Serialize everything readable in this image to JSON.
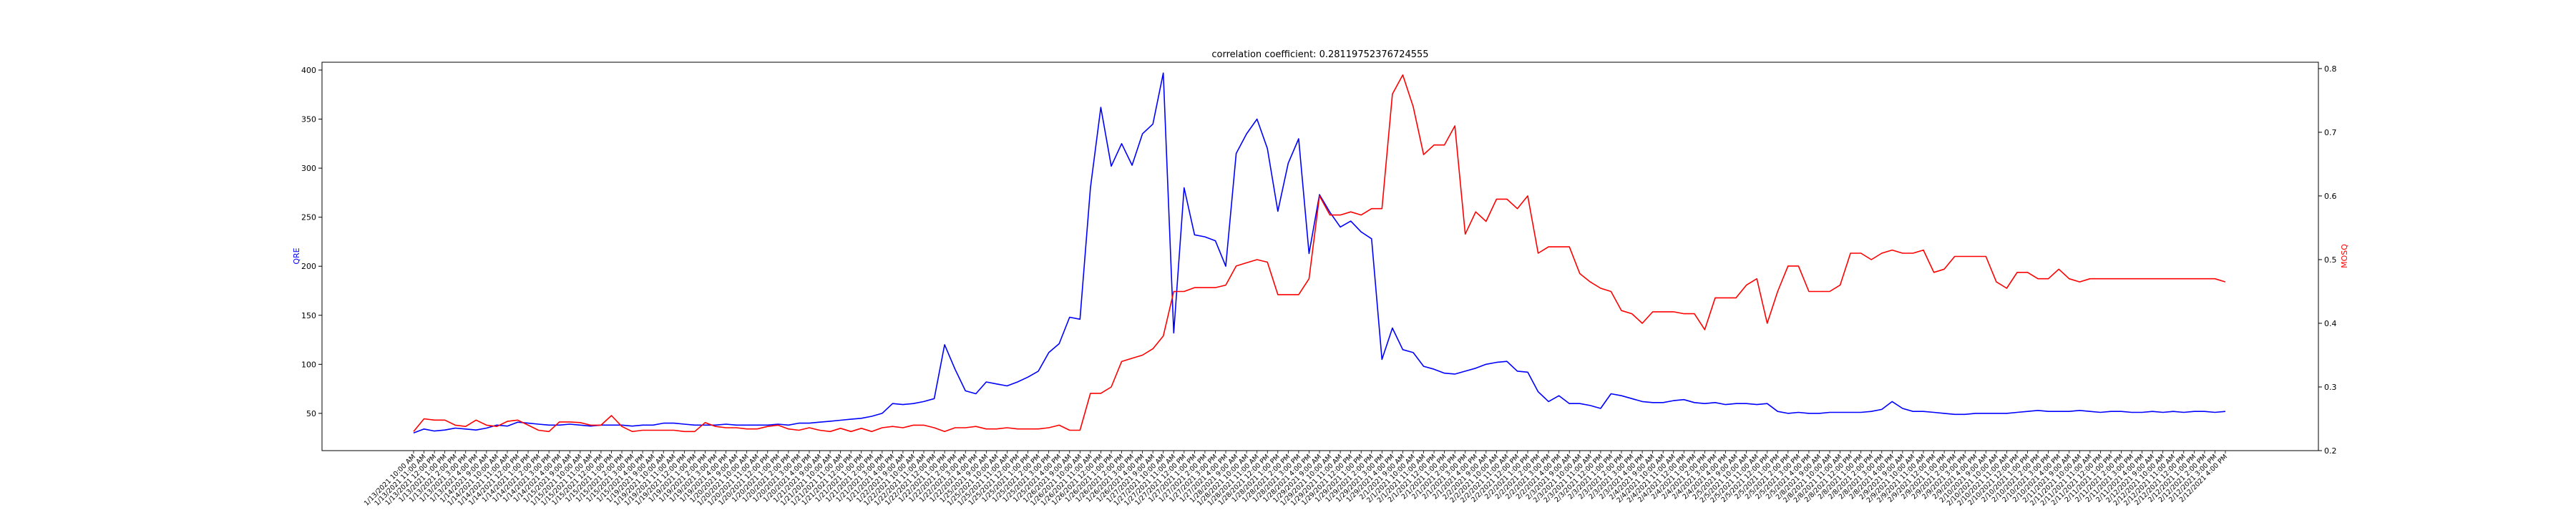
{
  "chart_data": {
    "type": "line",
    "title": "correlation coefficient: 0.28119752376724555",
    "xlabel": "",
    "ylabel_left": "QRE",
    "ylabel_right": "MOSQ",
    "colors": {
      "left": "#0000ff",
      "right": "#ff0000"
    },
    "ylim_left": [
      12,
      408
    ],
    "yticks_left": [
      50,
      100,
      150,
      200,
      250,
      300,
      350,
      400
    ],
    "ylim_right": [
      0.2,
      0.81
    ],
    "yticks_right": [
      0.2,
      0.3,
      0.4,
      0.5,
      0.6,
      0.7,
      0.8
    ],
    "x": [
      "1/13/2021 10:00 AM",
      "1/13/2021 11:00 AM",
      "1/13/2021 12:00 PM",
      "1/13/2021 1:00 PM",
      "1/13/2021 2:00 PM",
      "1/13/2021 3:00 PM",
      "1/13/2021 4:00 PM",
      "1/14/2021 9:00 AM",
      "1/14/2021 10:00 AM",
      "1/14/2021 11:00 AM",
      "1/14/2021 12:00 PM",
      "1/14/2021 1:00 PM",
      "1/14/2021 2:00 PM",
      "1/14/2021 3:00 PM",
      "1/14/2021 4:00 PM",
      "1/15/2021 9:00 AM",
      "1/15/2021 10:00 AM",
      "1/15/2021 11:00 AM",
      "1/15/2021 12:00 PM",
      "1/15/2021 1:00 PM",
      "1/15/2021 2:00 PM",
      "1/15/2021 3:00 PM",
      "1/15/2021 4:00 PM",
      "1/19/2021 9:00 AM",
      "1/19/2021 10:00 AM",
      "1/19/2021 11:00 AM",
      "1/19/2021 12:00 PM",
      "1/19/2021 1:00 PM",
      "1/19/2021 2:00 PM",
      "1/19/2021 3:00 PM",
      "1/19/2021 4:00 PM",
      "1/20/2021 9:00 AM",
      "1/20/2021 10:00 AM",
      "1/20/2021 11:00 AM",
      "1/20/2021 12:00 PM",
      "1/20/2021 1:00 PM",
      "1/20/2021 2:00 PM",
      "1/20/2021 3:00 PM",
      "1/20/2021 4:00 PM",
      "1/21/2021 9:00 AM",
      "1/21/2021 10:00 AM",
      "1/21/2021 11:00 AM",
      "1/21/2021 12:00 PM",
      "1/21/2021 1:00 PM",
      "1/21/2021 2:00 PM",
      "1/21/2021 3:00 PM",
      "1/21/2021 4:00 PM",
      "1/22/2021 9:00 AM",
      "1/22/2021 10:00 AM",
      "1/22/2021 11:00 AM",
      "1/22/2021 12:00 PM",
      "1/22/2021 1:00 PM",
      "1/22/2021 2:00 PM",
      "1/22/2021 3:00 PM",
      "1/22/2021 4:00 PM",
      "1/25/2021 9:00 AM",
      "1/25/2021 10:00 AM",
      "1/25/2021 11:00 AM",
      "1/25/2021 12:00 PM",
      "1/25/2021 1:00 PM",
      "1/25/2021 2:00 PM",
      "1/25/2021 3:00 PM",
      "1/25/2021 4:00 PM",
      "1/26/2021 9:00 AM",
      "1/26/2021 10:00 AM",
      "1/26/2021 11:00 AM",
      "1/26/2021 12:00 PM",
      "1/26/2021 1:00 PM",
      "1/26/2021 2:00 PM",
      "1/26/2021 3:00 PM",
      "1/26/2021 4:00 PM",
      "1/27/2021 9:00 AM",
      "1/27/2021 10:00 AM",
      "1/27/2021 11:00 AM",
      "1/27/2021 12:00 PM",
      "1/27/2021 1:00 PM",
      "1/27/2021 2:00 PM",
      "1/27/2021 3:00 PM",
      "1/27/2021 4:00 PM",
      "1/28/2021 9:00 AM",
      "1/28/2021 10:00 AM",
      "1/28/2021 11:00 AM",
      "1/28/2021 12:00 PM",
      "1/28/2021 1:00 PM",
      "1/28/2021 2:00 PM",
      "1/28/2021 3:00 PM",
      "1/28/2021 4:00 PM",
      "1/29/2021 9:00 AM",
      "1/29/2021 10:00 AM",
      "1/29/2021 11:00 AM",
      "1/29/2021 12:00 PM",
      "1/29/2021 1:00 PM",
      "1/29/2021 2:00 PM",
      "1/29/2021 3:00 PM",
      "1/29/2021 4:00 PM",
      "2/1/2021 9:00 AM",
      "2/1/2021 10:00 AM",
      "2/1/2021 11:00 AM",
      "2/1/2021 12:00 PM",
      "2/1/2021 1:00 PM",
      "2/1/2021 2:00 PM",
      "2/1/2021 3:00 PM",
      "2/1/2021 4:00 PM",
      "2/2/2021 9:00 AM",
      "2/2/2021 10:00 AM",
      "2/2/2021 11:00 AM",
      "2/2/2021 12:00 PM",
      "2/2/2021 1:00 PM",
      "2/2/2021 2:00 PM",
      "2/2/2021 3:00 PM",
      "2/2/2021 4:00 PM",
      "2/3/2021 9:00 AM",
      "2/3/2021 10:00 AM",
      "2/3/2021 11:00 AM",
      "2/3/2021 12:00 PM",
      "2/3/2021 1:00 PM",
      "2/3/2021 2:00 PM",
      "2/3/2021 3:00 PM",
      "2/3/2021 4:00 PM",
      "2/4/2021 9:00 AM",
      "2/4/2021 10:00 AM",
      "2/4/2021 11:00 AM",
      "2/4/2021 12:00 PM",
      "2/4/2021 1:00 PM",
      "2/4/2021 2:00 PM",
      "2/4/2021 3:00 PM",
      "2/4/2021 4:00 PM",
      "2/5/2021 9:00 AM",
      "2/5/2021 10:00 AM",
      "2/5/2021 11:00 AM",
      "2/5/2021 12:00 PM",
      "2/5/2021 1:00 PM",
      "2/5/2021 2:00 PM",
      "2/5/2021 3:00 PM",
      "2/5/2021 4:00 PM",
      "2/8/2021 9:00 AM",
      "2/8/2021 10:00 AM",
      "2/8/2021 11:00 AM",
      "2/8/2021 12:00 PM",
      "2/8/2021 1:00 PM",
      "2/8/2021 2:00 PM",
      "2/8/2021 3:00 PM",
      "2/8/2021 4:00 PM",
      "2/9/2021 9:00 AM",
      "2/9/2021 10:00 AM",
      "2/9/2021 11:00 AM",
      "2/9/2021 12:00 PM",
      "2/9/2021 1:00 PM",
      "2/9/2021 2:00 PM",
      "2/9/2021 3:00 PM",
      "2/9/2021 4:00 PM",
      "2/10/2021 9:00 AM",
      "2/10/2021 10:00 AM",
      "2/10/2021 11:00 AM",
      "2/10/2021 12:00 PM",
      "2/10/2021 1:00 PM",
      "2/10/2021 2:00 PM",
      "2/10/2021 3:00 PM",
      "2/10/2021 4:00 PM",
      "2/11/2021 9:00 AM",
      "2/11/2021 10:00 AM",
      "2/11/2021 11:00 AM",
      "2/11/2021 12:00 PM",
      "2/11/2021 1:00 PM",
      "2/11/2021 2:00 PM",
      "2/11/2021 3:00 PM",
      "2/11/2021 4:00 PM",
      "2/12/2021 9:00 AM",
      "2/12/2021 10:00 AM",
      "2/12/2021 11:00 AM",
      "2/12/2021 12:00 PM",
      "2/12/2021 1:00 PM",
      "2/12/2021 2:00 PM",
      "2/12/2021 3:00 PM",
      "2/12/2021 4:00 PM"
    ],
    "series": [
      {
        "name": "QRE",
        "axis": "left",
        "values": [
          30,
          34,
          32,
          33,
          35,
          34,
          33,
          35,
          38,
          37,
          41,
          40,
          39,
          38,
          38,
          39,
          38,
          37,
          38,
          38,
          38,
          37,
          38,
          38,
          40,
          40,
          39,
          38,
          38,
          38,
          39,
          38,
          38,
          38,
          38,
          39,
          38,
          40,
          40,
          41,
          42,
          43,
          44,
          45,
          47,
          50,
          60,
          59,
          60,
          62,
          65,
          120,
          95,
          73,
          70,
          82,
          80,
          78,
          82,
          87,
          93,
          112,
          121,
          148,
          146,
          280,
          362,
          302,
          325,
          303,
          335,
          345,
          397,
          132,
          280,
          232,
          230,
          226,
          200,
          315,
          335,
          350,
          320,
          256,
          305,
          330,
          213,
          273,
          255,
          240,
          246,
          235,
          228,
          105,
          137,
          115,
          112,
          98,
          95,
          91,
          90,
          93,
          96,
          100,
          102,
          103,
          93,
          92,
          72,
          62,
          68,
          60,
          60,
          58,
          55,
          70,
          68,
          65,
          62,
          61,
          61,
          63,
          64,
          61,
          60,
          61,
          59,
          60,
          60,
          59,
          60,
          52,
          50,
          51,
          50,
          50,
          51,
          51,
          51,
          51,
          52,
          54,
          62,
          55,
          52,
          52,
          51,
          50,
          49,
          49,
          50,
          50,
          50,
          50,
          51,
          52,
          53,
          52,
          52,
          52,
          53,
          52,
          51,
          52,
          52,
          51,
          51,
          52,
          51,
          52,
          51,
          52,
          52,
          51,
          52
        ]
      },
      {
        "name": "MOSQ",
        "axis": "right",
        "values": [
          0.23,
          0.25,
          0.248,
          0.248,
          0.24,
          0.238,
          0.248,
          0.24,
          0.238,
          0.246,
          0.248,
          0.24,
          0.232,
          0.23,
          0.245,
          0.245,
          0.244,
          0.24,
          0.24,
          0.255,
          0.238,
          0.23,
          0.232,
          0.232,
          0.232,
          0.232,
          0.23,
          0.23,
          0.244,
          0.238,
          0.236,
          0.236,
          0.234,
          0.234,
          0.238,
          0.24,
          0.234,
          0.232,
          0.236,
          0.232,
          0.23,
          0.235,
          0.23,
          0.235,
          0.23,
          0.236,
          0.238,
          0.236,
          0.24,
          0.24,
          0.236,
          0.23,
          0.236,
          0.236,
          0.238,
          0.234,
          0.234,
          0.236,
          0.234,
          0.234,
          0.234,
          0.236,
          0.24,
          0.232,
          0.232,
          0.29,
          0.29,
          0.3,
          0.34,
          0.345,
          0.35,
          0.36,
          0.38,
          0.45,
          0.45,
          0.456,
          0.456,
          0.456,
          0.46,
          0.49,
          0.495,
          0.5,
          0.496,
          0.445,
          0.445,
          0.445,
          0.47,
          0.6,
          0.57,
          0.57,
          0.575,
          0.57,
          0.58,
          0.58,
          0.76,
          0.79,
          0.74,
          0.665,
          0.68,
          0.68,
          0.71,
          0.54,
          0.575,
          0.56,
          0.595,
          0.595,
          0.58,
          0.6,
          0.51,
          0.52,
          0.52,
          0.52,
          0.478,
          0.465,
          0.455,
          0.45,
          0.42,
          0.415,
          0.4,
          0.418,
          0.418,
          0.418,
          0.415,
          0.415,
          0.39,
          0.44,
          0.44,
          0.44,
          0.46,
          0.47,
          0.4,
          0.45,
          0.49,
          0.49,
          0.45,
          0.45,
          0.45,
          0.46,
          0.51,
          0.51,
          0.5,
          0.51,
          0.515,
          0.51,
          0.51,
          0.515,
          0.48,
          0.485,
          0.505,
          0.505,
          0.505,
          0.505,
          0.465,
          0.455,
          0.48,
          0.48,
          0.47,
          0.47,
          0.485,
          0.47,
          0.465,
          0.47,
          0.47,
          0.47,
          0.47,
          0.47,
          0.47,
          0.47,
          0.47,
          0.47,
          0.47,
          0.47,
          0.47,
          0.47,
          0.465
        ]
      }
    ],
    "grid": false,
    "legend": "none"
  }
}
